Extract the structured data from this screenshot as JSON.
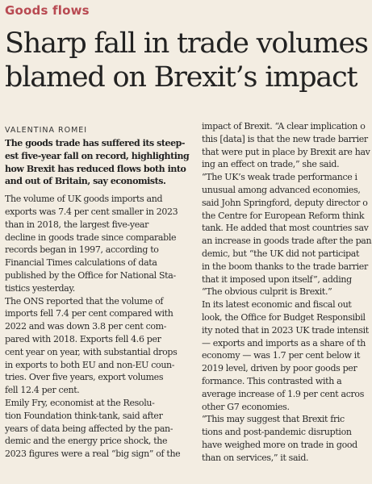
{
  "section": "Goods flows",
  "headline": [
    "Sharp fall in trade volumes",
    "blamed on Brexit’s impact"
  ],
  "byline": "VALENTINA ROMEI",
  "standfirst": [
    "The goods trade has suffered its steep-",
    "est five-year fall on record, highlighting",
    "how Brexit has reduced flows both into",
    "and out of Britain, say economists."
  ],
  "left_body": [
    "The volume of UK goods imports and",
    "exports was 7.4 per cent smaller in 2023",
    "than in 2018, the largest five-year",
    "decline in goods trade since comparable",
    "records began in 1997, according to",
    "Financial Times calculations of data",
    "published by the Office for National Sta-",
    "tistics yesterday.",
    "   The ONS reported that the volume of",
    "imports fell 7.4 per cent compared with",
    "2022 and was down 3.8 per cent com-",
    "pared with 2018. Exports fell 4.6 per",
    "cent year on year, with substantial drops",
    "in exports to both EU and non-EU coun-",
    "tries. Over five years, export volumes",
    "fell 12.4 per cent.",
    "   Emily Fry, economist at the Resolu-",
    "tion Foundation think-tank, said after",
    "years of data being affected by the pan-",
    "demic and the energy price shock, the",
    "2023 figures were a real “big sign” of the"
  ],
  "right_body": [
    "impact of Brexit. “A clear implication o",
    "this [data] is that the new trade barrier",
    "that were put in place by Brexit are hav",
    "ing an effect on trade,” she said.",
    "   “The UK’s weak trade performance i",
    "unusual among advanced economies,",
    "said John Springford, deputy director o",
    "the Centre for European Reform think",
    "tank. He added that most countries sav",
    "an increase in goods trade after the pan",
    "demic, but “the UK did not participat",
    "in the boom thanks to the trade barrier",
    "that it imposed upon itself”, adding",
    "“The obvious culprit is Brexit.”",
    "   In its latest economic and fiscal out",
    "look, the Office for Budget Responsibil",
    "ity noted that in 2023 UK trade intensit",
    "— exports and imports as a share of th",
    "economy — was 1.7 per cent below it",
    "2019 level, driven by poor goods per",
    "formance. This contrasted with a",
    "average increase of 1.9 per cent acros",
    "other G7 economies.",
    "   “This may suggest that Brexit fric",
    "tions and post-pandemic disruption",
    "have weighed more on trade in good",
    "than on services,” it said."
  ]
}
